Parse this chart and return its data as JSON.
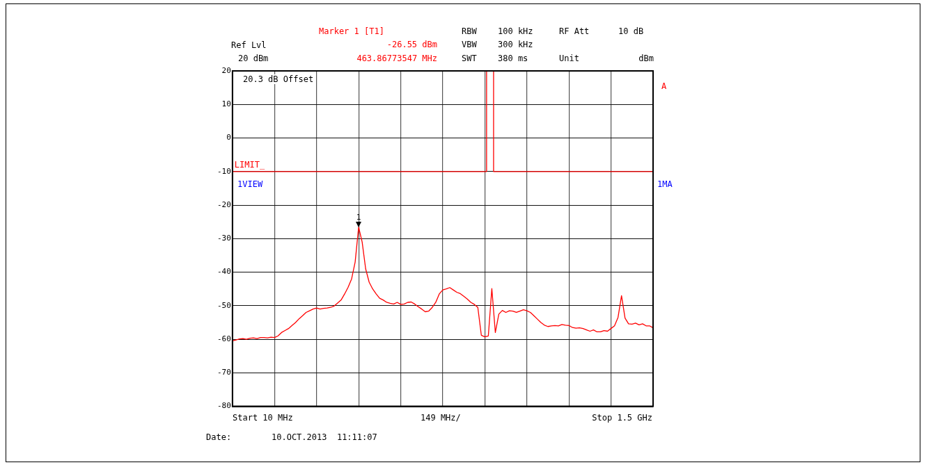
{
  "chart_data": {
    "type": "line",
    "marker": "none",
    "grid": true,
    "legend": false,
    "categories": [
      null,
      null,
      null,
      null,
      null,
      null,
      null,
      null,
      null,
      null,
      null,
      null,
      null,
      null,
      null,
      null,
      null,
      null,
      null,
      null,
      null,
      null,
      null,
      null,
      null,
      null,
      null,
      null,
      null,
      null,
      null,
      null,
      null,
      null,
      null,
      null,
      null,
      null,
      null,
      null,
      null,
      null,
      null,
      null,
      null,
      null,
      null,
      null,
      null,
      null,
      null,
      null,
      null,
      null,
      null,
      null,
      null,
      null,
      null,
      null,
      null,
      null,
      null,
      null,
      null,
      null,
      null,
      null,
      null,
      null,
      null,
      null,
      null,
      null,
      null,
      null,
      null,
      null,
      null,
      null,
      null,
      null,
      null,
      null,
      null,
      null,
      null,
      null,
      null,
      null,
      null,
      null,
      null,
      null,
      null,
      null,
      null,
      null,
      null,
      null,
      null,
      null,
      null,
      null,
      null,
      null,
      null,
      null,
      null,
      null,
      null,
      null,
      null,
      null,
      null,
      null,
      null,
      null,
      null,
      null,
      null
    ],
    "ylim": [
      -80,
      20
    ],
    "yticks": [
      -80,
      -70,
      -60,
      -50,
      -40,
      -30,
      -20,
      -10,
      0,
      10,
      20
    ],
    "series": [
      {
        "color": "#ff0000",
        "values": [
          -60.5,
          -60.2,
          -59.9,
          -59.8,
          -60.0,
          -59.7,
          -59.6,
          -59.8,
          -59.5,
          -59.5,
          -59.6,
          -59.4,
          -59.5,
          -59.0,
          -58.0,
          -57.4,
          -56.8,
          -55.9,
          -55.0,
          -53.9,
          -53.0,
          -52.0,
          -51.5,
          -51.0,
          -50.7,
          -51.0,
          -50.8,
          -50.7,
          -50.5,
          -50.1,
          -49.2,
          -48.3,
          -46.5,
          -44.5,
          -42.0,
          -37.0,
          -26.6,
          -31.0,
          -39.0,
          -43.0,
          -45.0,
          -46.5,
          -47.8,
          -48.3,
          -49.0,
          -49.3,
          -49.5,
          -49.0,
          -49.6,
          -49.5,
          -49.0,
          -48.9,
          -49.5,
          -50.3,
          -51.0,
          -51.8,
          -51.6,
          -50.5,
          -49.0,
          -46.5,
          -45.3,
          -45.0,
          -44.6,
          -45.3,
          -46.0,
          -46.4,
          -47.2,
          -48.0,
          -49.0,
          -49.6,
          -50.5,
          -58.8,
          -59.3,
          -59.0,
          -44.9,
          -58.0,
          -52.5,
          -51.4,
          -52.0,
          -51.5,
          -51.6,
          -52.0,
          -51.6,
          -51.2,
          -51.5,
          -52.0,
          -53.0,
          -54.0,
          -55.0,
          -55.8,
          -56.2,
          -56.0,
          -55.9,
          -56.0,
          -55.6,
          -55.8,
          -55.9,
          -56.5,
          -56.7,
          -56.6,
          -56.8,
          -57.2,
          -57.6,
          -57.2,
          -57.8,
          -57.8,
          -57.4,
          -57.6,
          -56.8,
          -56.0,
          -53.5,
          -47.0,
          -53.7,
          -55.4,
          -55.5,
          -55.2,
          -55.7,
          -55.4,
          -56.0,
          -56.0,
          -56.6
        ]
      },
      {
        "name": "LIMIT_",
        "type": "step",
        "color": "#ff0000",
        "values": [
          -10,
          -10,
          -10,
          -10,
          -10,
          -10,
          -10,
          -10,
          -10,
          -10,
          -10,
          -10,
          -10,
          -10,
          -10,
          -10,
          -10,
          -10,
          -10,
          -10,
          -10,
          -10,
          -10,
          -10,
          -10,
          -10,
          -10,
          -10,
          -10,
          -10,
          -10,
          -10,
          -10,
          -10,
          -10,
          -10,
          -10,
          -10,
          -10,
          -10,
          -10,
          -10,
          -10,
          -10,
          -10,
          -10,
          -10,
          -10,
          -10,
          -10,
          -10,
          -10,
          -10,
          -10,
          -10,
          -10,
          -10,
          -10,
          -10,
          -10,
          -10,
          -10,
          -10,
          -10,
          -10,
          -10,
          -10,
          -10,
          -10,
          -10,
          -10,
          -10,
          -10,
          20,
          20,
          -10,
          -10,
          -10,
          -10,
          -10,
          -10,
          -10,
          -10,
          -10,
          -10,
          -10,
          -10,
          -10,
          -10,
          -10,
          -10,
          -10,
          -10,
          -10,
          -10,
          -10,
          -10,
          -10,
          -10,
          -10,
          -10,
          -10,
          -10,
          -10,
          -10,
          -10,
          -10,
          -10,
          -10,
          -10,
          -10,
          -10,
          -10,
          -10,
          -10,
          -10,
          -10,
          -10,
          -10,
          -10,
          -10
        ]
      }
    ],
    "annotations": [
      "Marker 1 [T1]",
      "-26.55 dBm",
      "463.86773547 MHz",
      "Ref Lvl",
      "20 dBm",
      "RBW",
      "100 kHz",
      "VBW",
      "300 kHz",
      "SWT",
      "380 ms",
      "RF Att",
      "10 dB",
      "Unit",
      "dBm",
      "20.3 dB Offset",
      "1VIEW",
      "1MA",
      "A",
      "Date:",
      "10.OCT.2013  11:11:07",
      "Start 10 MHz",
      "149 MHz/",
      "Stop 1.5 GHz",
      {
        "text": "1",
        "y": -26.55
      }
    ]
  }
}
